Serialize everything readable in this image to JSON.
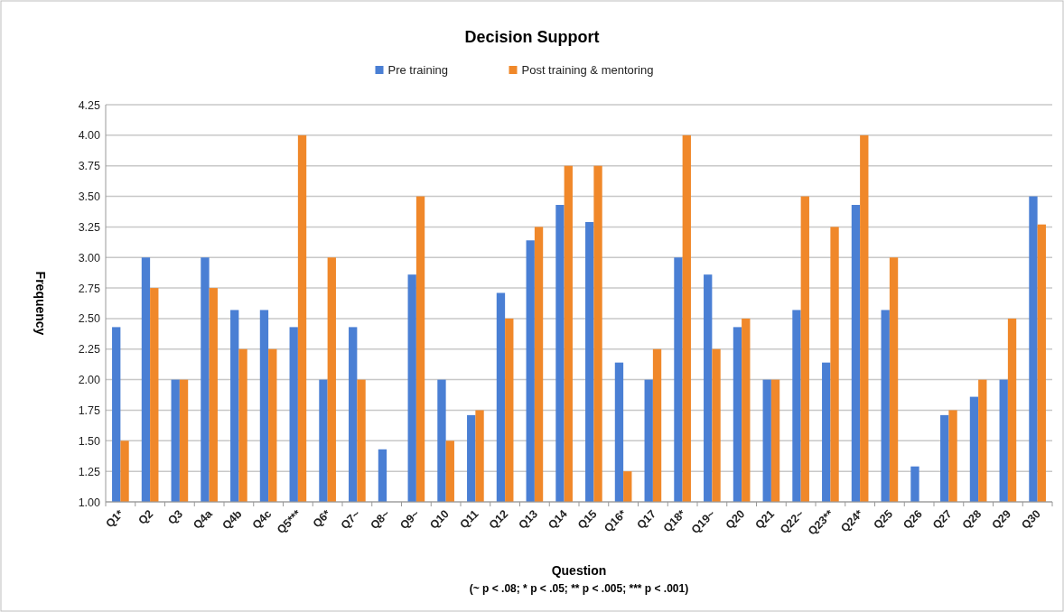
{
  "chart_data": {
    "type": "bar",
    "title": "Decision  Support",
    "xlabel": "Question",
    "ylabel": "Frequency",
    "annotations": [
      "(~ p < .08; * p < .05; ** p < .005; *** p < .001)"
    ],
    "categories": [
      "Q1*",
      "Q2",
      "Q3",
      "Q4a",
      "Q4b",
      "Q4c",
      "Q5***",
      "Q6*",
      "Q7~",
      "Q8~",
      "Q9~",
      "Q10",
      "Q11",
      "Q12",
      "Q13",
      "Q14",
      "Q15",
      "Q16*",
      "Q17",
      "Q18*",
      "Q19~",
      "Q20",
      "Q21",
      "Q22~",
      "Q23**",
      "Q24*",
      "Q25",
      "Q26",
      "Q27",
      "Q28",
      "Q29",
      "Q30"
    ],
    "series": [
      {
        "name": "Pre training",
        "color": "#4a7fd4",
        "values": [
          2.43,
          3.0,
          2.0,
          3.0,
          2.57,
          2.57,
          2.43,
          2.0,
          2.43,
          1.43,
          2.86,
          2.0,
          1.71,
          2.71,
          3.14,
          3.43,
          3.29,
          2.14,
          2.0,
          3.0,
          2.86,
          2.43,
          2.0,
          2.57,
          2.14,
          3.43,
          2.57,
          1.29,
          1.71,
          1.86,
          2.0,
          3.5
        ]
      },
      {
        "name": "Post training & mentoring",
        "color": "#f0882a",
        "values": [
          1.5,
          2.75,
          2.0,
          2.75,
          2.25,
          2.25,
          4.0,
          3.0,
          2.0,
          null,
          3.5,
          1.5,
          1.75,
          2.5,
          3.25,
          3.75,
          3.75,
          1.25,
          2.25,
          4.0,
          2.25,
          2.5,
          2.0,
          3.5,
          3.25,
          4.0,
          3.0,
          null,
          1.75,
          2.0,
          2.5,
          3.27
        ]
      }
    ],
    "ylim": [
      1.0,
      4.25
    ],
    "yticks": [
      {
        "value": 1.0,
        "label": "1.00"
      },
      {
        "value": 1.25,
        "label": "1.25"
      },
      {
        "value": 1.5,
        "label": "1.50"
      },
      {
        "value": 1.75,
        "label": "1.75"
      },
      {
        "value": 2.0,
        "label": "2.00"
      },
      {
        "value": 2.25,
        "label": "2.25"
      },
      {
        "value": 2.5,
        "label": "2.50"
      },
      {
        "value": 2.75,
        "label": "2.75"
      },
      {
        "value": 3.0,
        "label": "3.00"
      },
      {
        "value": 3.25,
        "label": "3.25"
      },
      {
        "value": 3.5,
        "label": "3.50"
      },
      {
        "value": 3.75,
        "label": "3.75"
      },
      {
        "value": 4.0,
        "label": "4.00"
      },
      {
        "value": 4.25,
        "label": "4.25"
      }
    ],
    "grid": "y",
    "legend": "top"
  }
}
